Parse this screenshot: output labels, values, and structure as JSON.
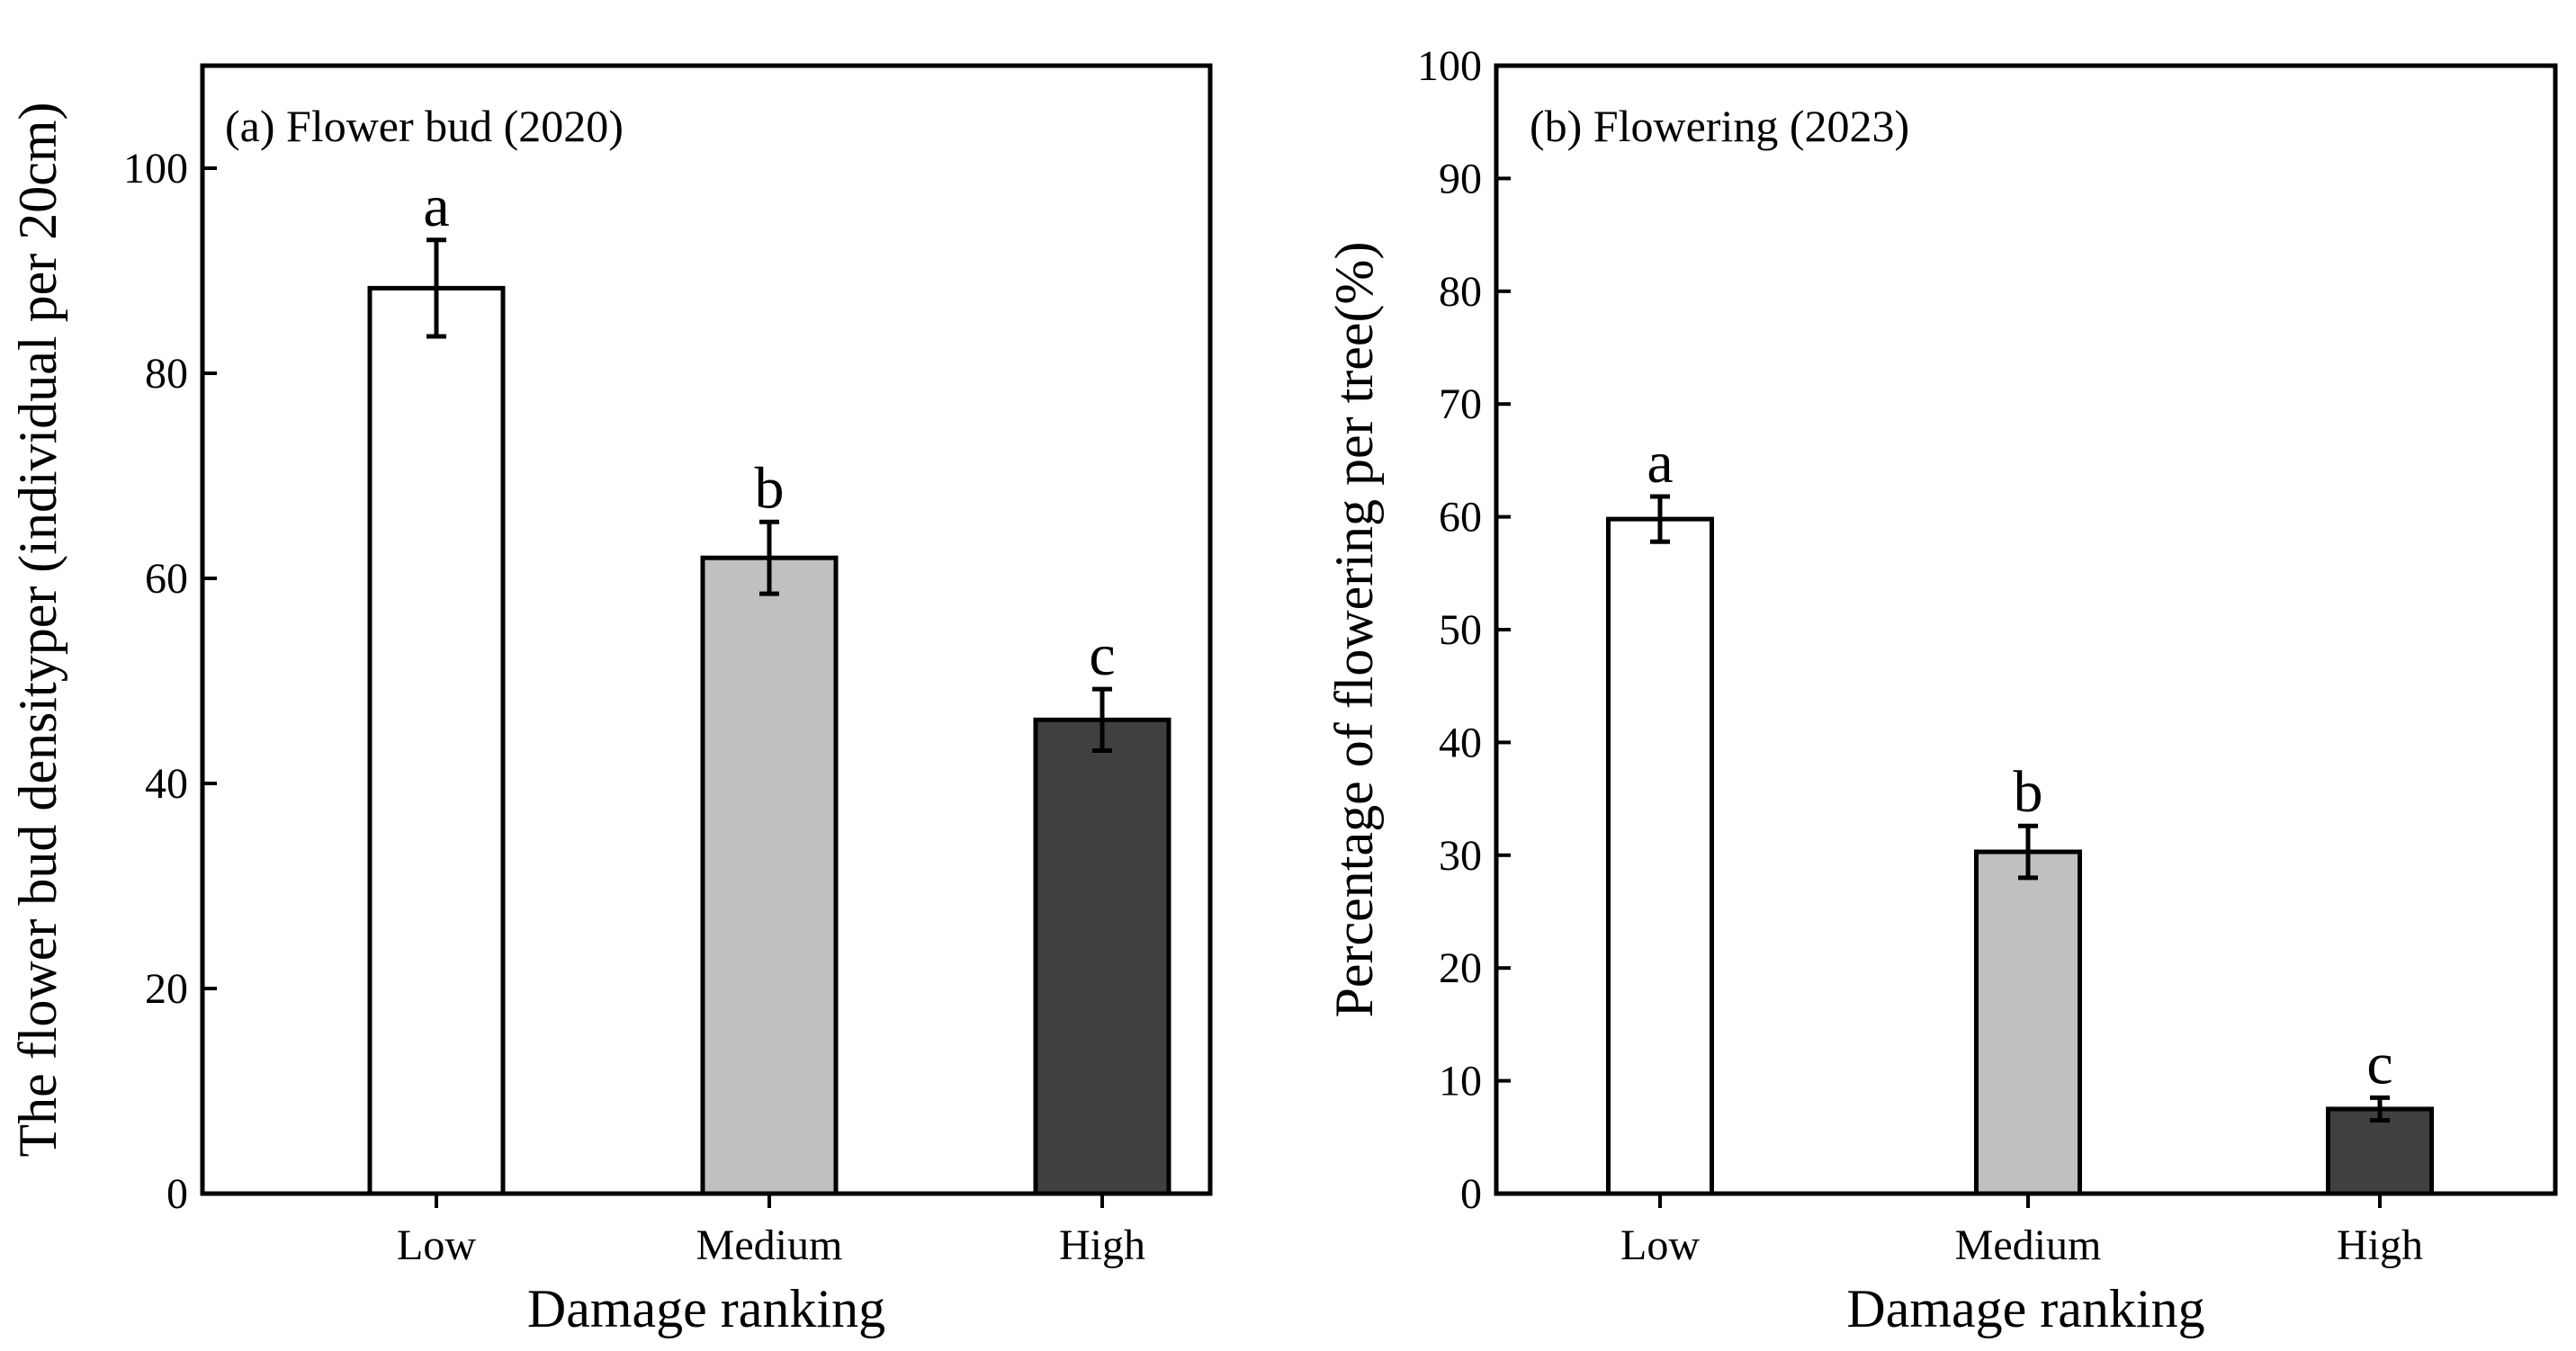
{
  "chart_data": [
    {
      "type": "bar",
      "title": "(a) Flower bud (2020)",
      "xlabel": "Damage ranking",
      "ylabel": "The  flower bud densityper  (individual per  20cm)",
      "categories": [
        "Low",
        "Medium",
        "High"
      ],
      "values": [
        88.3,
        62.0,
        46.2
      ],
      "errors": [
        4.7,
        3.5,
        3.0
      ],
      "significance": [
        "a",
        "b",
        "c"
      ],
      "ylim": [
        0,
        110
      ],
      "yticks": [
        0,
        20,
        40,
        60,
        80,
        100
      ],
      "ytick_labels": [
        "0",
        "20",
        "40",
        "60",
        "80",
        "100"
      ],
      "bar_colors": [
        "#ffffff",
        "#c0c0c0",
        "#404040"
      ],
      "grid": false,
      "legend": "none"
    },
    {
      "type": "bar",
      "title": "(b) Flowering (2023)",
      "xlabel": "Damage ranking",
      "ylabel": "Percentage of flowering per tree(%)",
      "categories": [
        "Low",
        "Medium",
        "High"
      ],
      "values": [
        59.8,
        30.3,
        7.5
      ],
      "errors": [
        2.0,
        2.3,
        1.0
      ],
      "significance": [
        "a",
        "b",
        "c"
      ],
      "ylim": [
        0,
        100
      ],
      "yticks": [
        0,
        10,
        20,
        30,
        40,
        50,
        60,
        70,
        80,
        90,
        100
      ],
      "ytick_labels": [
        "0",
        "10",
        "20",
        "30",
        "40",
        "50",
        "60",
        "70",
        "80",
        "90",
        "100"
      ],
      "bar_colors": [
        "#ffffff",
        "#c0c0c0",
        "#404040"
      ],
      "grid": false,
      "legend": "none"
    }
  ]
}
